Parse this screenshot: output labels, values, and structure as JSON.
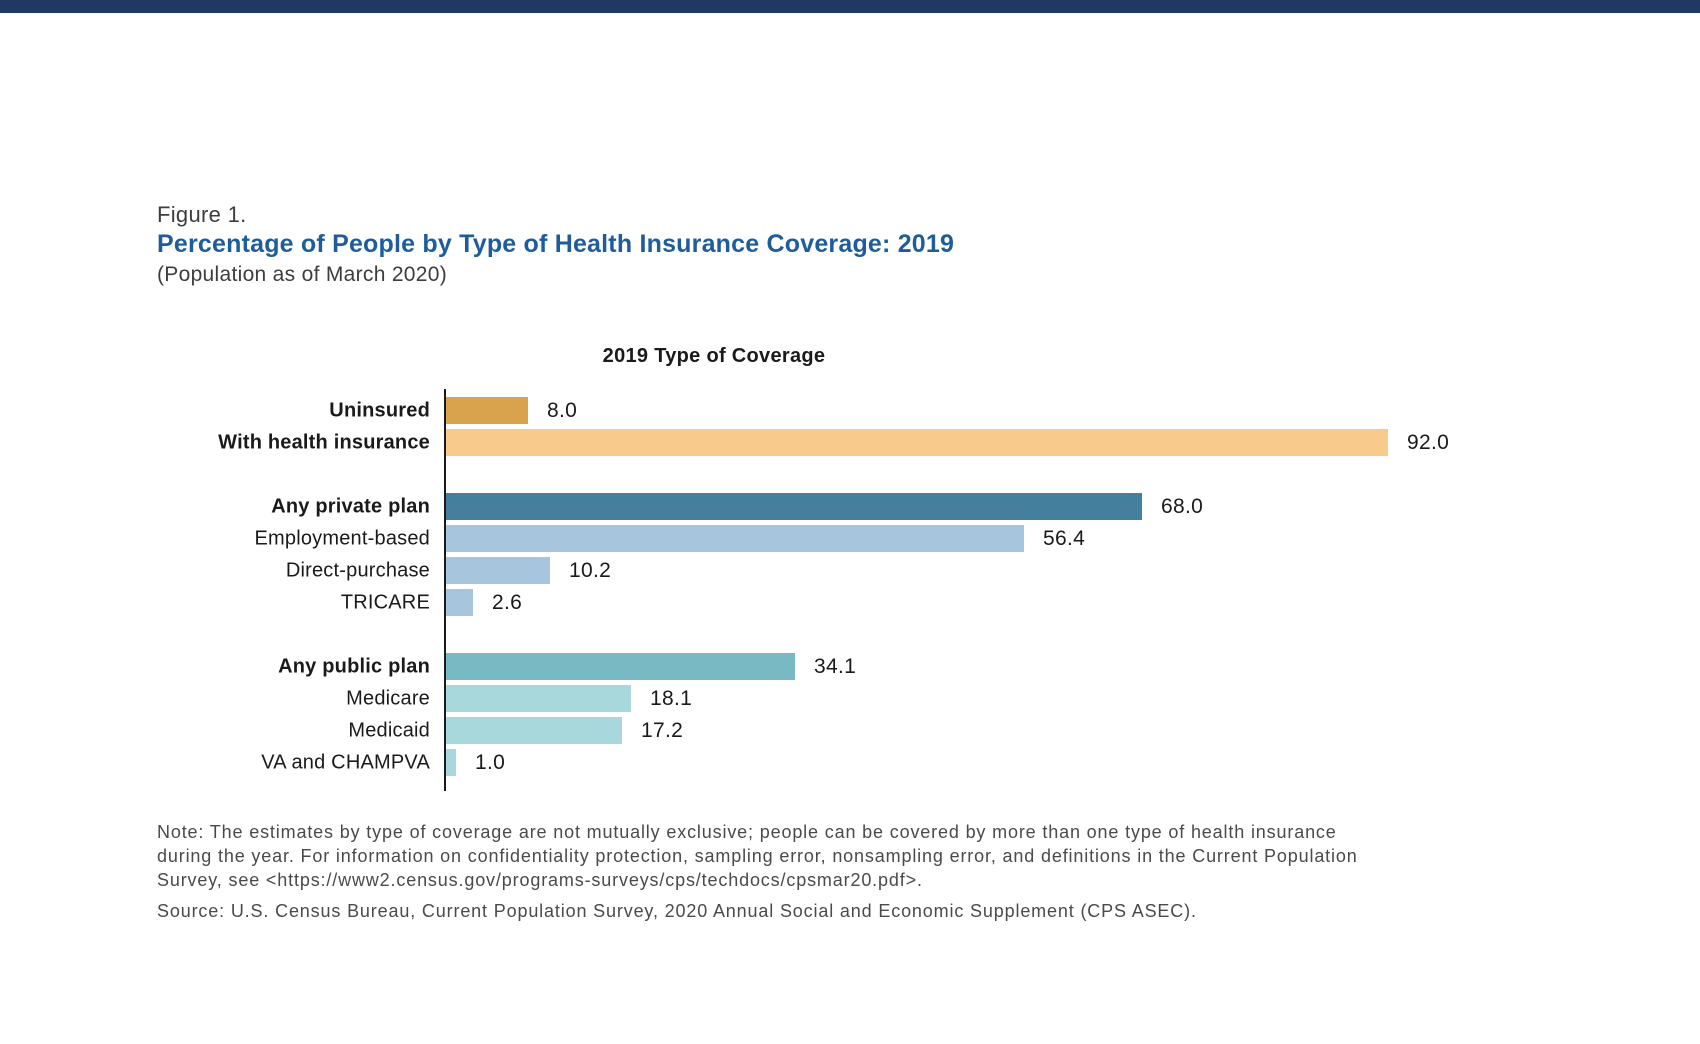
{
  "palette": {
    "top_bar_navy": "#1F3864",
    "title_blue": "#1E5C9B",
    "text_dark": "#3D3D3D",
    "label_black": "#1A1A1A",
    "note_gray": "#4A4A4A",
    "axis_black": "#1A1A1A"
  },
  "header": {
    "figure_label": "Figure 1.",
    "title": "Percentage of People by Type of Health Insurance Coverage: 2019",
    "subtitle": "(Population as of March 2020)"
  },
  "chart_data": {
    "type": "bar",
    "orientation": "horizontal",
    "title": "2019 Type of Coverage",
    "unit": "percent of people",
    "xlim": [
      0,
      100
    ],
    "grid": false,
    "legend": false,
    "value_labels": "end-of-bar",
    "groups": [
      {
        "name": "insurance-status",
        "bars": [
          {
            "label": "Uninsured",
            "value": 8.0,
            "display": "8.0",
            "color": "#D9A24C",
            "bold": true
          },
          {
            "label": "With health insurance",
            "value": 92.0,
            "display": "92.0",
            "color": "#F8CA8C",
            "bold": true
          }
        ]
      },
      {
        "name": "private-plans",
        "bars": [
          {
            "label": "Any private plan",
            "value": 68.0,
            "display": "68.0",
            "color": "#44809E",
            "bold": true
          },
          {
            "label": "Employment-based",
            "value": 56.4,
            "display": "56.4",
            "color": "#A7C5DD",
            "bold": false
          },
          {
            "label": "Direct-purchase",
            "value": 10.2,
            "display": "10.2",
            "color": "#A7C5DD",
            "bold": false
          },
          {
            "label": "TRICARE",
            "value": 2.6,
            "display": "2.6",
            "color": "#A7C5DD",
            "bold": false
          }
        ]
      },
      {
        "name": "public-plans",
        "bars": [
          {
            "label": "Any public plan",
            "value": 34.1,
            "display": "34.1",
            "color": "#78B9C4",
            "bold": true
          },
          {
            "label": "Medicare",
            "value": 18.1,
            "display": "18.1",
            "color": "#A8D8DC",
            "bold": false
          },
          {
            "label": "Medicaid",
            "value": 17.2,
            "display": "17.2",
            "color": "#A8D8DC",
            "bold": false
          },
          {
            "label": "VA and CHAMPVA",
            "value": 1.0,
            "display": "1.0",
            "color": "#A8D8DC",
            "bold": false
          }
        ]
      }
    ]
  },
  "footer": {
    "note_lines": [
      "Note: The estimates by type of coverage are not mutually exclusive; people can be covered by more than one type of health insurance",
      "during the year. For information on confidentiality protection, sampling error, nonsampling error, and definitions in the Current Population",
      "Survey, see <https://www2.census.gov/programs-surveys/cps/techdocs/cpsmar20.pdf>."
    ],
    "source": "Source: U.S. Census Bureau, Current Population Survey, 2020 Annual Social and Economic Supplement (CPS ASEC)."
  }
}
